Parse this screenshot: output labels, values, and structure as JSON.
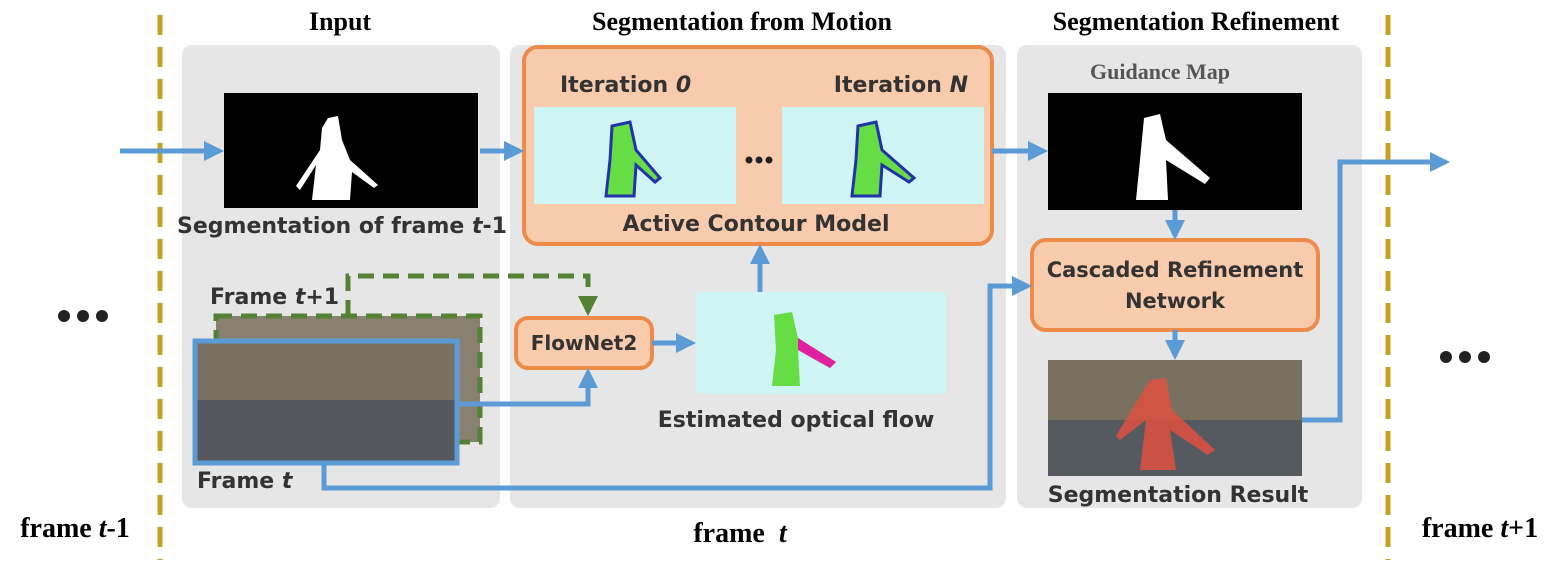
{
  "sections": {
    "input": "Input",
    "motion": "Segmentation from Motion",
    "refinement": "Segmentation Refinement"
  },
  "input": {
    "prev_seg": {
      "text": "Segmentation of frame ",
      "var": "t",
      "suffix": "-1"
    },
    "frame_next": {
      "text": "Frame ",
      "var": "t",
      "suffix": "+1"
    },
    "frame_cur": {
      "text": "Frame ",
      "var": "t"
    }
  },
  "motion": {
    "iter_first": {
      "text": "Iteration ",
      "var": "0"
    },
    "iter_last": {
      "text": "Iteration ",
      "var": "N"
    },
    "acm": "Active Contour Model",
    "flownet": "FlowNet2",
    "flow": "Estimated optical flow"
  },
  "refinement": {
    "guidance": "Guidance Map",
    "crn": [
      "Cascaded Refinement",
      "Network"
    ],
    "result": "Segmentation Result"
  },
  "frames": {
    "prev": {
      "text": "frame ",
      "var": "t",
      "suffix": "-1"
    },
    "cur": {
      "text": "frame  ",
      "var": "t"
    },
    "next": {
      "text": "frame ",
      "var": "t",
      "suffix": "+1"
    }
  }
}
